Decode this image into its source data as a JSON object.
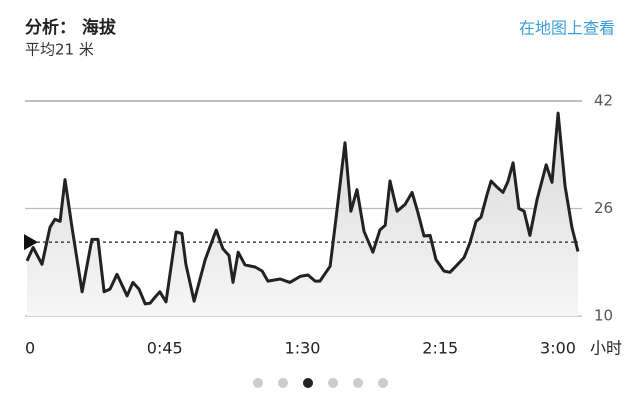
{
  "header": {
    "title": "分析：  海拔",
    "subtitle": "平均21 米",
    "link": "在地图上查看"
  },
  "chart_data": {
    "type": "line",
    "x": [
      0,
      2.0,
      4.9,
      7.5,
      9.1,
      10.8,
      12.4,
      14.7,
      18.0,
      21.2,
      23.2,
      25.2,
      27.1,
      29.4,
      32.7,
      34.6,
      36.6,
      38.6,
      40.2,
      41.8,
      43.4,
      45.4,
      48.7,
      50.6,
      51.9,
      54.6,
      58.2,
      61.8,
      64.0,
      66.0,
      67.3,
      69.0,
      71.2,
      74.5,
      76.8,
      78.7,
      82.7,
      85.9,
      89.2,
      91.8,
      94.1,
      95.7,
      99.0,
      100.9,
      103.9,
      105.8,
      107.8,
      110.1,
      113.0,
      115.3,
      117.0,
      118.6,
      120.9,
      123.5,
      125.8,
      127.7,
      129.7,
      131.7,
      133.6,
      136.2,
      138.2,
      140.5,
      142.8,
      144.7,
      146.7,
      148.3,
      150.3,
      151.6,
      153.5,
      155.5,
      157.1,
      158.8,
      160.7,
      162.4,
      164.3,
      166.6,
      169.6,
      171.5,
      173.5,
      175.8,
      178.0,
      180
    ],
    "values": [
      18.2,
      20.2,
      17.7,
      23.2,
      24.4,
      24.1,
      30.3,
      23.2,
      13.6,
      21.4,
      21.4,
      13.6,
      14,
      16.2,
      13,
      15,
      14,
      11.8,
      11.9,
      12.8,
      13.6,
      12.1,
      22.5,
      22.3,
      17.7,
      12.2,
      18.4,
      22.8,
      20,
      19,
      15,
      19.5,
      17.6,
      17.3,
      16.7,
      15.2,
      15.5,
      15,
      15.9,
      16.1,
      15.2,
      15.2,
      17.4,
      24.4,
      35.8,
      25.6,
      28.8,
      22.6,
      19.5,
      22.8,
      23.5,
      30.1,
      25.6,
      26.6,
      28.4,
      25.4,
      21.9,
      22,
      18.4,
      16.7,
      16.5,
      17.6,
      18.7,
      20.9,
      24.1,
      24.7,
      28.1,
      30.1,
      29.2,
      28.4,
      30,
      32.8,
      26,
      25.6,
      22,
      27.3,
      32.5,
      29.9,
      40.2,
      29.3,
      23.2,
      19.6
    ],
    "color": "#222222",
    "avg_line": 21,
    "xlim": [
      0,
      180
    ],
    "xticks": [
      0,
      {
        "value": 45,
        "label": "0:45"
      },
      {
        "value": 90,
        "label": "1:30"
      },
      {
        "value": 135,
        "label": "2:15"
      },
      {
        "value": 180,
        "label": "3:00"
      }
    ],
    "x_unit": "小时",
    "ylim": [
      10,
      42
    ],
    "yticks": [
      10,
      26,
      42
    ],
    "grid": true
  }
}
